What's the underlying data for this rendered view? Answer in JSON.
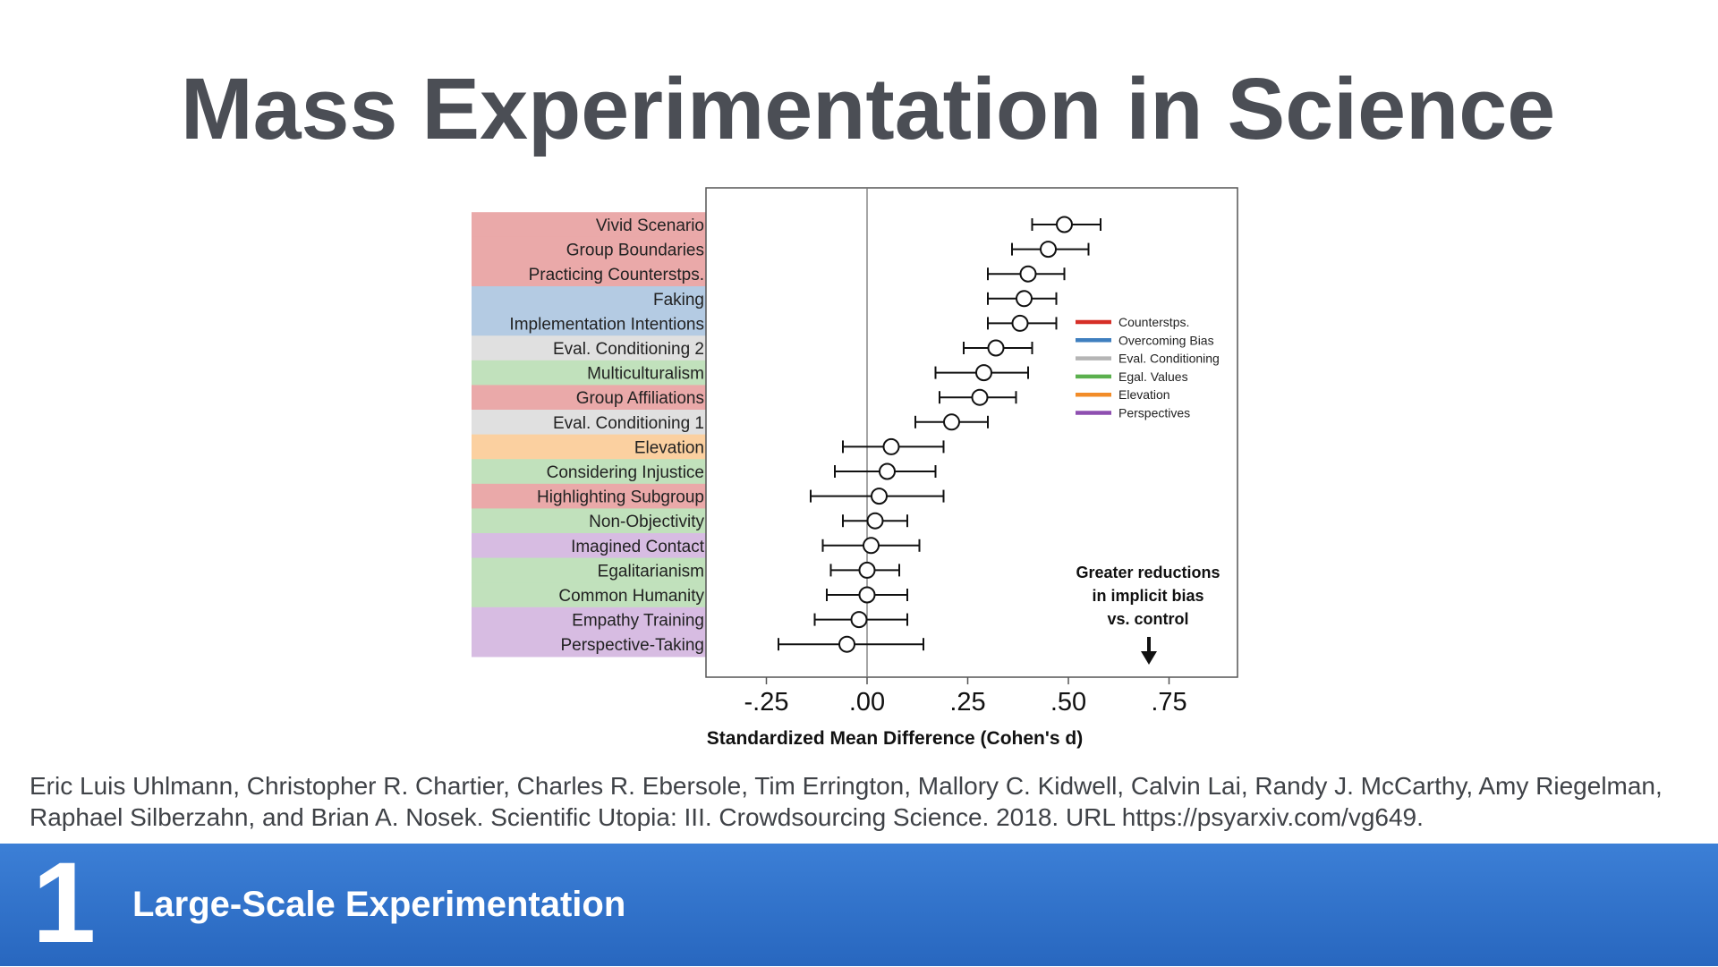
{
  "slide": {
    "title": "Mass Experimentation in Science",
    "citation": "Eric Luis Uhlmann, Christopher R. Chartier, Charles R. Ebersole, Tim Errington, Mallory C. Kidwell, Calvin Lai, Randy J. McCarthy, Amy Riegelman, Raphael Silberzahn, and Brian A. Nosek. Scientific Utopia: III. Crowdsourcing Science. 2018. URL https://psyarxiv.com/vg649.",
    "footer": {
      "number": "1",
      "section": "Large-Scale Experimentation"
    }
  },
  "chart_data": {
    "type": "scatter",
    "title": "",
    "xlabel": "Standardized Mean Difference (Cohen's d)",
    "xlim": [
      -0.4,
      0.92
    ],
    "xticks": [
      -0.25,
      0,
      0.25,
      0.5,
      0.75
    ],
    "xtick_labels": [
      "-.25",
      ".00",
      ".25",
      ".50",
      ".75"
    ],
    "reference_line": 0,
    "grid": false,
    "legend_position": "right",
    "legend": [
      {
        "name": "Counterstps.",
        "color": "#d62f27"
      },
      {
        "name": "Overcoming Bias",
        "color": "#3f7fbf"
      },
      {
        "name": "Eval. Conditioning",
        "color": "#b5b5b5"
      },
      {
        "name": "Egal. Values",
        "color": "#5bb04e"
      },
      {
        "name": "Elevation",
        "color": "#f28c28"
      },
      {
        "name": "Perspectives",
        "color": "#8e4fb0"
      }
    ],
    "category_colors": {
      "Counterstps.": "#eaa9a9",
      "Overcoming Bias": "#b4cbe3",
      "Eval. Conditioning": "#e0e0e0",
      "Egal. Values": "#c1e1bc",
      "Elevation": "#fbd0a0",
      "Perspectives": "#d7bce2"
    },
    "annotation": [
      "Greater reductions",
      "in implicit bias",
      "vs. control"
    ],
    "annotation_arrow_x": 0.7,
    "points": [
      {
        "label": "Vivid Scenario",
        "group": "Counterstps.",
        "d": 0.49,
        "lo": 0.41,
        "hi": 0.58
      },
      {
        "label": "Group Boundaries",
        "group": "Counterstps.",
        "d": 0.45,
        "lo": 0.36,
        "hi": 0.55
      },
      {
        "label": "Practicing Counterstps.",
        "group": "Counterstps.",
        "d": 0.4,
        "lo": 0.3,
        "hi": 0.49
      },
      {
        "label": "Faking",
        "group": "Overcoming Bias",
        "d": 0.39,
        "lo": 0.3,
        "hi": 0.47
      },
      {
        "label": "Implementation Intentions",
        "group": "Overcoming Bias",
        "d": 0.38,
        "lo": 0.3,
        "hi": 0.47
      },
      {
        "label": "Eval. Conditioning 2",
        "group": "Eval. Conditioning",
        "d": 0.32,
        "lo": 0.24,
        "hi": 0.41
      },
      {
        "label": "Multiculturalism",
        "group": "Egal. Values",
        "d": 0.29,
        "lo": 0.17,
        "hi": 0.4
      },
      {
        "label": "Group Affiliations",
        "group": "Counterstps.",
        "d": 0.28,
        "lo": 0.18,
        "hi": 0.37
      },
      {
        "label": "Eval. Conditioning 1",
        "group": "Eval. Conditioning",
        "d": 0.21,
        "lo": 0.12,
        "hi": 0.3
      },
      {
        "label": "Elevation",
        "group": "Elevation",
        "d": 0.06,
        "lo": -0.06,
        "hi": 0.19
      },
      {
        "label": "Considering Injustice",
        "group": "Egal. Values",
        "d": 0.05,
        "lo": -0.08,
        "hi": 0.17
      },
      {
        "label": "Highlighting Subgroup",
        "group": "Counterstps.",
        "d": 0.03,
        "lo": -0.14,
        "hi": 0.19
      },
      {
        "label": "Non-Objectivity",
        "group": "Egal. Values",
        "d": 0.02,
        "lo": -0.06,
        "hi": 0.1
      },
      {
        "label": "Imagined Contact",
        "group": "Perspectives",
        "d": 0.01,
        "lo": -0.11,
        "hi": 0.13
      },
      {
        "label": "Egalitarianism",
        "group": "Egal. Values",
        "d": 0.0,
        "lo": -0.09,
        "hi": 0.08
      },
      {
        "label": "Common Humanity",
        "group": "Egal. Values",
        "d": 0.0,
        "lo": -0.1,
        "hi": 0.1
      },
      {
        "label": "Empathy Training",
        "group": "Perspectives",
        "d": -0.02,
        "lo": -0.13,
        "hi": 0.1
      },
      {
        "label": "Perspective-Taking",
        "group": "Perspectives",
        "d": -0.05,
        "lo": -0.22,
        "hi": 0.14
      }
    ]
  }
}
